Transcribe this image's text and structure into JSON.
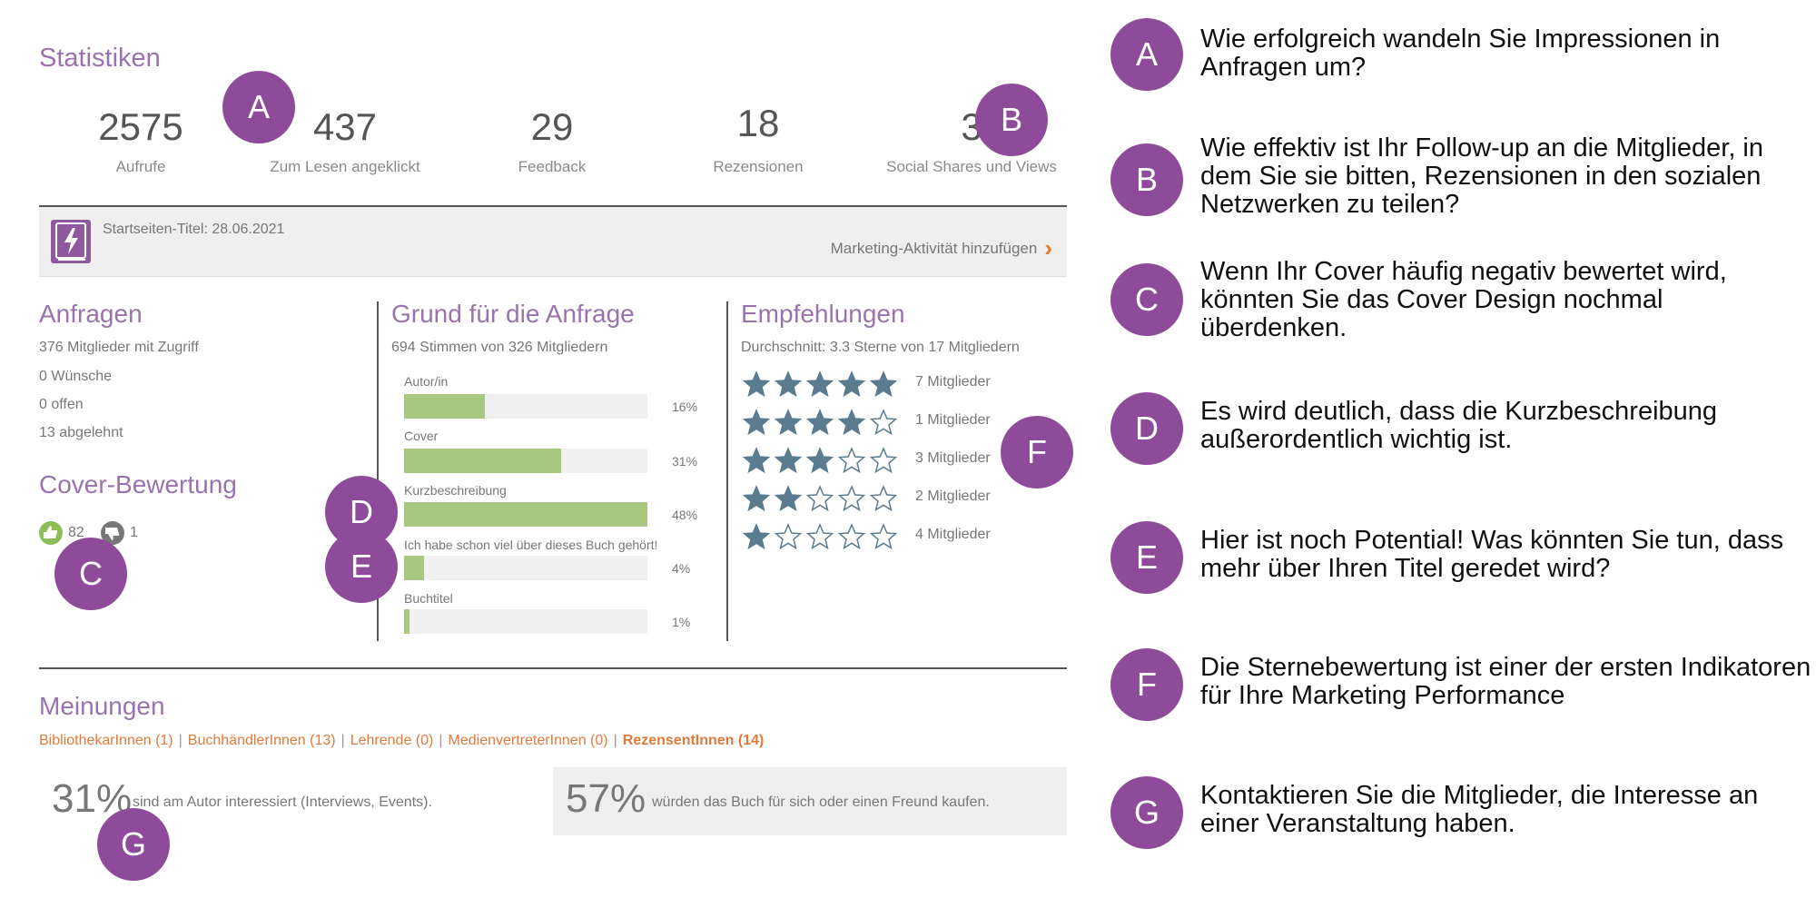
{
  "stats": {
    "title": "Statistiken",
    "items": [
      {
        "value": "2575",
        "label": "Aufrufe"
      },
      {
        "value": "437",
        "label": "Zum Lesen angeklickt"
      },
      {
        "value": "29",
        "label": "Feedback"
      },
      {
        "value": "18",
        "label": "Rezensionen"
      },
      {
        "value": "3",
        "label": "Social Shares und Views"
      }
    ]
  },
  "title_bar": {
    "date_text": "Startseiten-Titel: 28.06.2021",
    "add_activity": "Marketing-Aktivität hinzufügen",
    "icon": "book-lightning-icon"
  },
  "anfragen": {
    "title": "Anfragen",
    "lines": [
      "376 Mitglieder mit Zugriff",
      "0 Wünsche",
      "0 offen",
      "13 abgelehnt"
    ]
  },
  "cover": {
    "title": "Cover-Bewertung",
    "likes": "82",
    "dislikes": "1"
  },
  "grund": {
    "title": "Grund für die Anfrage",
    "subtitle": "694 Stimmen von 326 Mitgliedern",
    "bars": [
      {
        "label": "Autor/in",
        "pct": "16%",
        "value": 16
      },
      {
        "label": "Cover",
        "pct": "31%",
        "value": 31
      },
      {
        "label": "Kurzbeschreibung",
        "pct": "48%",
        "value": 48
      },
      {
        "label": "Ich habe schon viel über dieses Buch gehört!",
        "pct": "4%",
        "value": 4
      },
      {
        "label": "Buchtitel",
        "pct": "1%",
        "value": 1
      }
    ]
  },
  "empfehlungen": {
    "title": "Empfehlungen",
    "subtitle": "Durchschnitt: 3.3 Sterne von 17 Mitgliedern",
    "rows": [
      {
        "stars": 5,
        "label": "7 Mitglieder"
      },
      {
        "stars": 4,
        "label": "1 Mitglieder"
      },
      {
        "stars": 3,
        "label": "3 Mitglieder"
      },
      {
        "stars": 2,
        "label": "2 Mitglieder"
      },
      {
        "stars": 1,
        "label": "4 Mitglieder"
      }
    ],
    "star_color": "#5b7b8f"
  },
  "meinungen": {
    "title": "Meinungen",
    "tabs": [
      "BibliothekarInnen (1)",
      "BuchhändlerInnen (13)",
      "Lehrende (0)",
      "MedienvertreterInnen (0)",
      "RezensentInnen (14)"
    ],
    "left_pct": "31%",
    "left_text": "sind am Autor interessiert (Interviews, Events).",
    "right_pct": "57%",
    "right_text": "würden das Buch für sich oder einen Freund kaufen."
  },
  "badges": {
    "a": "A",
    "b": "B",
    "c": "C",
    "d": "D",
    "e": "E",
    "f": "F",
    "g": "G"
  },
  "callouts": [
    {
      "letter": "A",
      "text": "Wie erfolgreich wandeln Sie Impressionen in Anfragen um?"
    },
    {
      "letter": "B",
      "text": "Wie effektiv ist Ihr Follow-up an die Mitglieder, in dem Sie sie bitten, Rezensionen in den sozialen Netzwerken zu teilen?"
    },
    {
      "letter": "C",
      "text": "Wenn Ihr Cover häufig negativ bewertet wird, könnten Sie das Cover Design nochmal überdenken."
    },
    {
      "letter": "D",
      "text": "Es wird deutlich, dass die Kurzbeschreibung außerordentlich wichtig ist."
    },
    {
      "letter": "E",
      "text": "Hier ist noch Potential! Was könnten Sie tun, dass mehr über Ihren Titel geredet wird?"
    },
    {
      "letter": "F",
      "text": "Die Sternebewertung ist einer der ersten Indikatoren für Ihre Marketing Performance"
    },
    {
      "letter": "G",
      "text": "Kontaktieren Sie die Mitglieder, die Interesse an einer Veranstaltung haben."
    }
  ],
  "colors": {
    "accent": "#9a73ae",
    "badge": "#8e4b9a",
    "bar": "#a8c882",
    "link": "#e07a3a"
  }
}
